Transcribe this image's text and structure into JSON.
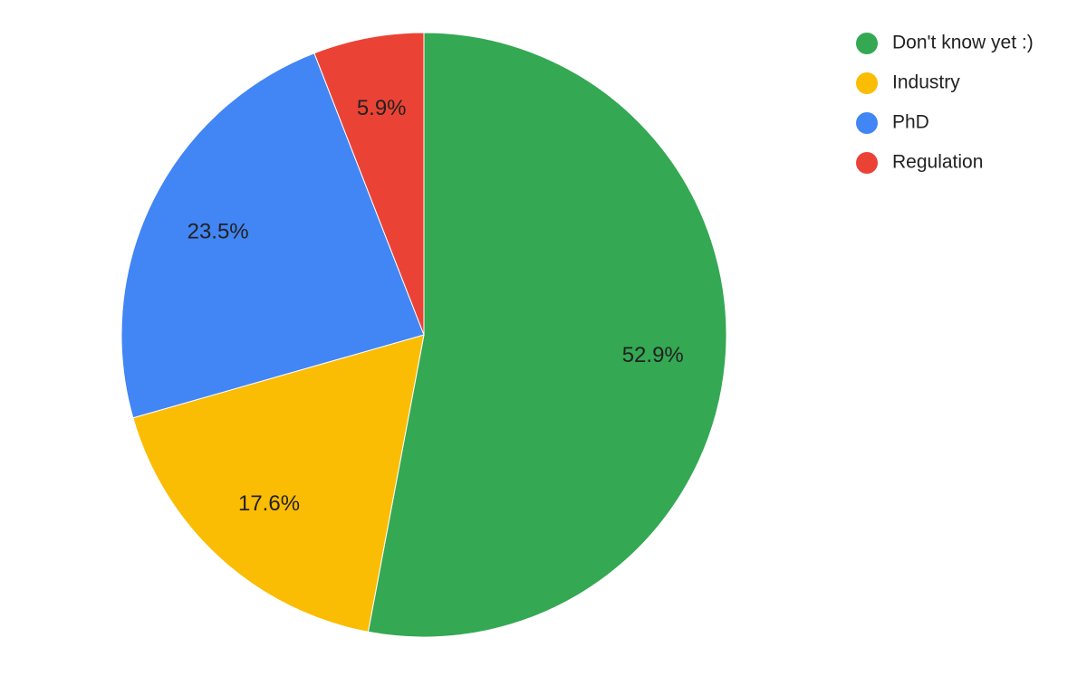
{
  "chart_data": {
    "type": "pie",
    "categories": [
      "Don't know yet :)",
      "Industry",
      "PhD",
      "Regulation"
    ],
    "values": [
      52.9,
      17.6,
      23.5,
      5.9
    ],
    "value_labels": [
      "52.9%",
      "17.6%",
      "23.5%",
      "5.9%"
    ],
    "colors": [
      "#34a853",
      "#fbbc04",
      "#4285f4",
      "#ea4335"
    ],
    "legend": "right"
  }
}
